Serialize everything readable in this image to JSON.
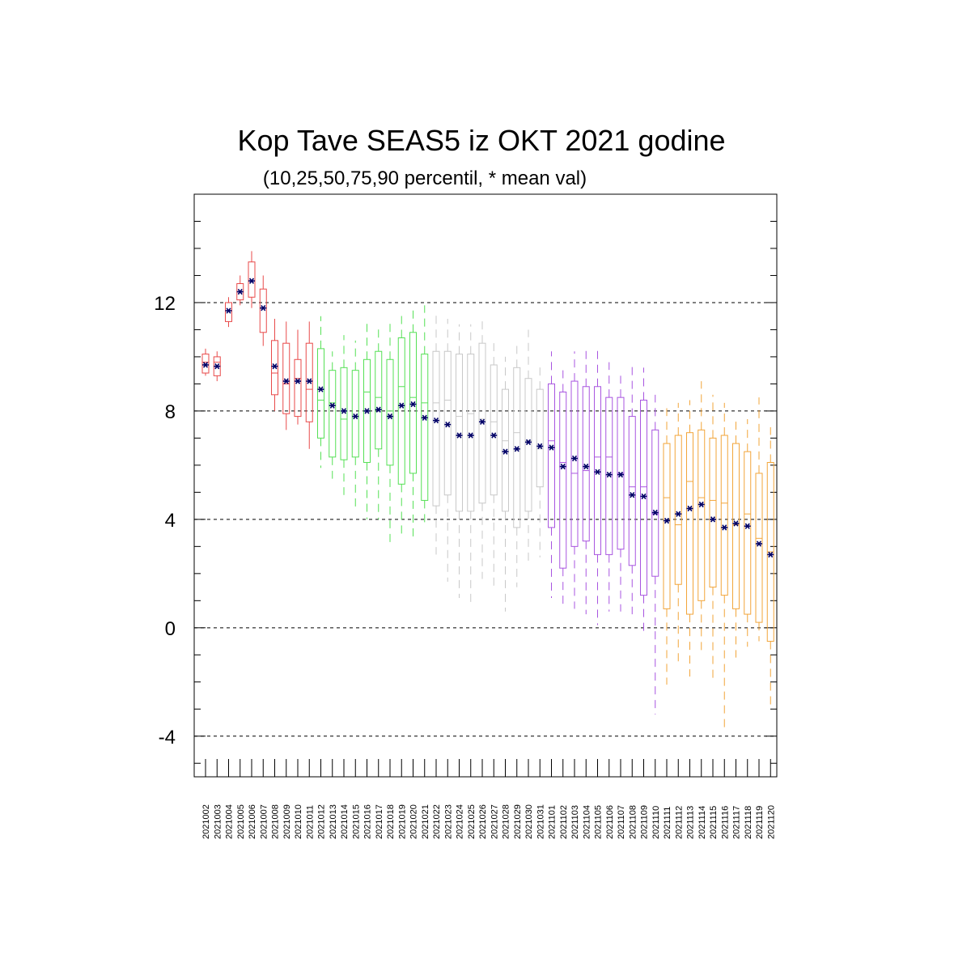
{
  "chart_data": {
    "type": "box",
    "title": "Kop Tave SEAS5 iz OKT 2021 godine",
    "subtitle": "(10,25,50,75,90 percentil, * mean val)",
    "ylim": [
      -5.5,
      16
    ],
    "yticks": [
      -4,
      0,
      4,
      8,
      12
    ],
    "grid": "horizontal dashed at major ticks",
    "colors": {
      "Oct": "#e84a4a",
      "Nov": "#55e055",
      "Dec": "#c8c8c8",
      "Jan": "#a855e0",
      "Feb": "#f2a53a",
      "mean_marker": "#000066"
    },
    "categories": [
      "2021002",
      "2021003",
      "2021004",
      "2021005",
      "2021006",
      "2021007",
      "2021008",
      "2021009",
      "2021010",
      "2021011",
      "2021012",
      "2021013",
      "2021014",
      "2021015",
      "2021016",
      "2021017",
      "2021018",
      "2021019",
      "2021020",
      "2021021",
      "2021022",
      "2021023",
      "2021024",
      "2021025",
      "2021026",
      "2021027",
      "2021028",
      "2021029",
      "2021030",
      "2021031",
      "2021101",
      "2021102",
      "2021103",
      "2021104",
      "2021105",
      "2021106",
      "2021107",
      "2021108",
      "2021109",
      "2021110",
      "2021111",
      "2021112",
      "2021113",
      "2021114",
      "2021115",
      "2021116",
      "2021117",
      "2021118",
      "2021119",
      "2021120"
    ],
    "groups": [
      "Oct",
      "Oct",
      "Oct",
      "Oct",
      "Oct",
      "Oct",
      "Oct",
      "Oct",
      "Oct",
      "Oct",
      "Nov",
      "Nov",
      "Nov",
      "Nov",
      "Nov",
      "Nov",
      "Nov",
      "Nov",
      "Nov",
      "Nov",
      "Dec",
      "Dec",
      "Dec",
      "Dec",
      "Dec",
      "Dec",
      "Dec",
      "Dec",
      "Dec",
      "Dec",
      "Jan",
      "Jan",
      "Jan",
      "Jan",
      "Jan",
      "Jan",
      "Jan",
      "Jan",
      "Jan",
      "Jan",
      "Feb",
      "Feb",
      "Feb",
      "Feb",
      "Feb",
      "Feb",
      "Feb",
      "Feb",
      "Feb",
      "Feb"
    ],
    "p10": [
      9.3,
      9.1,
      11.1,
      11.9,
      11.8,
      10.4,
      8.0,
      7.3,
      7.5,
      6.6,
      5.9,
      5.5,
      4.9,
      4.3,
      4.0,
      4.0,
      3.0,
      3.3,
      3.3,
      3.8,
      2.7,
      1.7,
      1.1,
      0.9,
      1.8,
      1.4,
      0.6,
      1.5,
      2.4,
      2.6,
      1.1,
      0.7,
      0.7,
      0.5,
      0.1,
      0.6,
      0.6,
      0.5,
      -0.3,
      -3.2,
      -2.1,
      -1.4,
      -1.8,
      -1.0,
      -2.0,
      -3.7,
      -1.1,
      -0.7,
      -0.5,
      -2.9
    ],
    "p25": [
      9.4,
      9.3,
      11.3,
      12.1,
      12.2,
      10.9,
      8.6,
      7.9,
      7.8,
      7.6,
      7.0,
      6.3,
      6.2,
      6.3,
      6.1,
      6.6,
      6.0,
      5.3,
      5.7,
      4.7,
      4.5,
      4.9,
      4.3,
      4.3,
      4.6,
      4.9,
      4.3,
      3.7,
      4.3,
      5.2,
      3.7,
      2.2,
      3.0,
      3.2,
      2.7,
      2.7,
      2.9,
      2.3,
      1.2,
      1.9,
      0.7,
      1.6,
      0.5,
      1.0,
      1.5,
      1.2,
      0.7,
      0.5,
      0.2,
      -0.5
    ],
    "p50": [
      9.8,
      9.8,
      11.7,
      12.4,
      12.8,
      11.8,
      9.4,
      9.0,
      9.2,
      8.8,
      8.4,
      8.3,
      7.7,
      7.8,
      8.7,
      8.5,
      8.0,
      8.9,
      8.5,
      8.3,
      8.3,
      8.4,
      7.8,
      7.9,
      7.7,
      7.6,
      6.9,
      7.2,
      6.9,
      6.6,
      6.9,
      6.1,
      5.7,
      5.8,
      6.3,
      6.3,
      5.7,
      5.2,
      5.2,
      4.2,
      4.8,
      3.8,
      5.4,
      4.8,
      4.7,
      4.6,
      3.8,
      4.2,
      3.3,
      2.8
    ],
    "p75": [
      10.1,
      10.0,
      12.0,
      12.7,
      13.5,
      12.5,
      10.6,
      10.5,
      9.9,
      10.5,
      10.3,
      9.5,
      9.6,
      9.5,
      9.9,
      10.2,
      9.9,
      10.7,
      10.9,
      10.1,
      10.2,
      10.2,
      10.1,
      10.1,
      10.5,
      9.7,
      8.8,
      9.6,
      9.2,
      8.8,
      9.0,
      8.7,
      9.1,
      8.9,
      8.9,
      8.5,
      8.5,
      7.8,
      8.4,
      7.3,
      6.8,
      7.1,
      7.2,
      7.3,
      7.0,
      7.1,
      6.8,
      6.5,
      5.7,
      6.1
    ],
    "p90": [
      10.3,
      10.2,
      12.2,
      13.0,
      13.9,
      13.0,
      11.4,
      11.3,
      11.0,
      11.3,
      11.5,
      10.2,
      10.8,
      10.6,
      11.3,
      11.2,
      11.4,
      11.6,
      11.9,
      11.9,
      11.7,
      11.4,
      11.2,
      11.2,
      11.5,
      10.5,
      10.0,
      10.4,
      11.0,
      9.7,
      10.2,
      9.5,
      10.2,
      10.3,
      10.3,
      9.8,
      9.3,
      9.8,
      9.6,
      8.6,
      8.1,
      8.3,
      8.4,
      9.1,
      8.6,
      8.3,
      7.7,
      7.7,
      8.5,
      7.4
    ],
    "mean": [
      9.7,
      9.65,
      11.7,
      12.4,
      12.8,
      11.8,
      9.65,
      9.1,
      9.1,
      9.1,
      8.8,
      8.2,
      8.0,
      7.8,
      8.0,
      8.05,
      7.8,
      8.2,
      8.25,
      7.75,
      7.65,
      7.5,
      7.1,
      7.1,
      7.6,
      7.1,
      6.5,
      6.6,
      6.85,
      6.7,
      6.65,
      5.95,
      6.25,
      5.95,
      5.75,
      5.65,
      5.65,
      4.9,
      4.85,
      4.25,
      3.95,
      4.2,
      4.4,
      4.55,
      4.0,
      3.7,
      3.85,
      3.75,
      3.1,
      2.7
    ]
  }
}
